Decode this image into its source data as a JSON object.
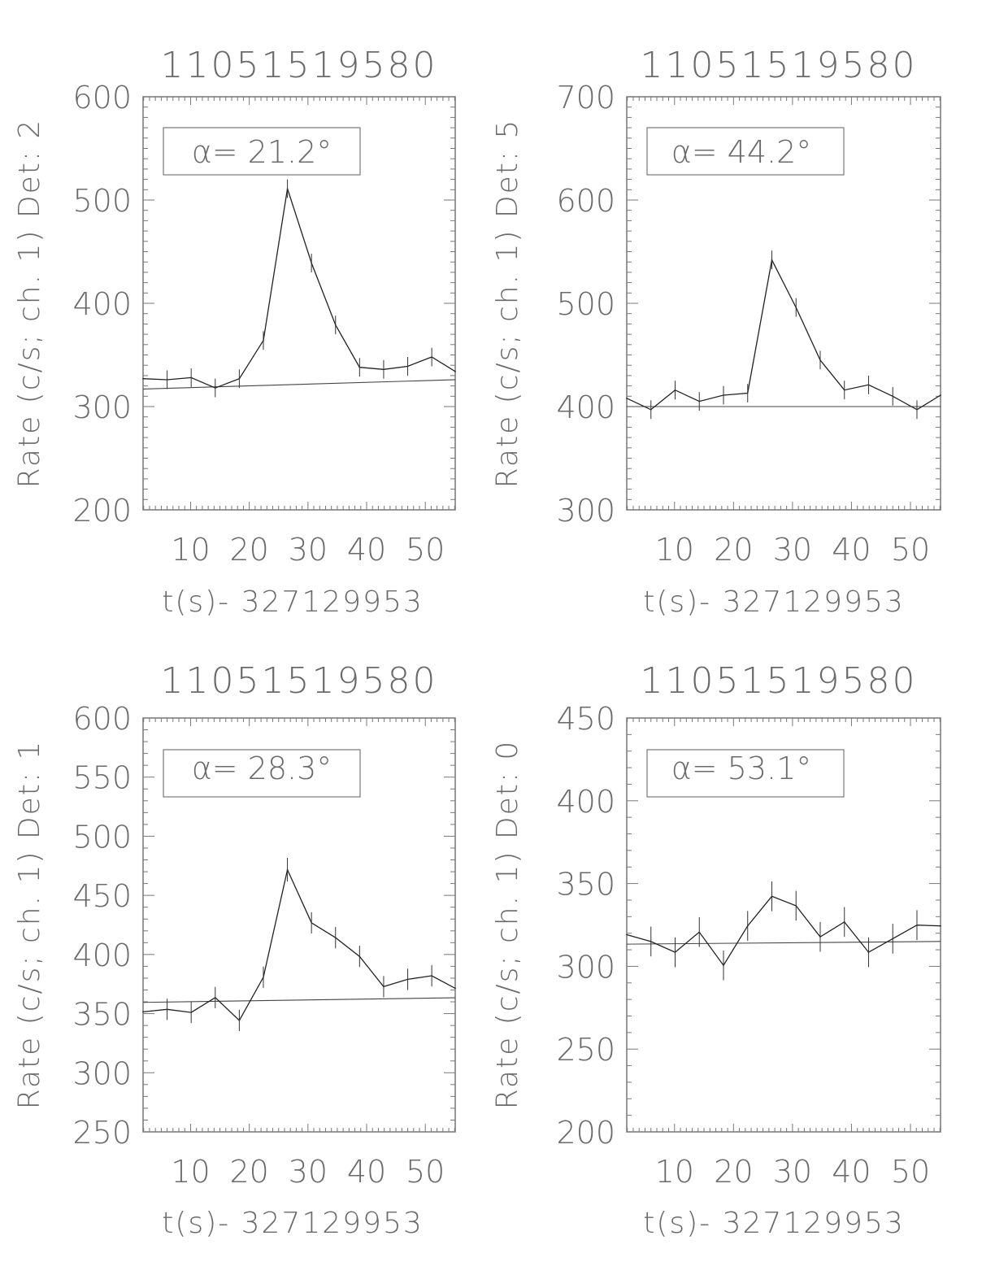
{
  "chart_data": [
    {
      "type": "line",
      "title": "11051519580",
      "ylabel": "Rate (c/s; ch. 1) Det: 2",
      "xlabel": "t(s)- 327129953",
      "annotation": "α= 21.2°",
      "xlim": [
        1.9,
        55.1
      ],
      "ylim": [
        200,
        600
      ],
      "xticks": [
        10,
        20,
        30,
        40,
        50
      ],
      "yticks": [
        200,
        300,
        400,
        500,
        600
      ],
      "ytick_labels": [
        "200",
        "300",
        "400",
        "500",
        "600"
      ],
      "xtick_labels": [
        "10",
        "20",
        "30",
        "40",
        "50"
      ],
      "y_minor_step": 10,
      "x": [
        1.9,
        6.0,
        10.1,
        14.2,
        18.3,
        22.4,
        26.5,
        30.6,
        34.7,
        38.8,
        42.9,
        47.0,
        51.1,
        55.1
      ],
      "y": [
        327,
        326,
        328,
        318,
        327,
        364,
        511,
        439,
        379,
        338,
        336,
        339,
        348,
        334
      ],
      "yerr": [
        0,
        9,
        9,
        9,
        9,
        9,
        9,
        9,
        9,
        9,
        9,
        9,
        9,
        0
      ],
      "background": {
        "x": [
          1.9,
          55.1
        ],
        "y": [
          317,
          326
        ]
      }
    },
    {
      "type": "line",
      "title": "11051519580",
      "ylabel": "Rate (c/s; ch. 1) Det: 5",
      "xlabel": "t(s)- 327129953",
      "annotation": "α= 44.2°",
      "xlim": [
        1.9,
        55.1
      ],
      "ylim": [
        300,
        700
      ],
      "xticks": [
        10,
        20,
        30,
        40,
        50
      ],
      "yticks": [
        300,
        400,
        500,
        600,
        700
      ],
      "ytick_labels": [
        "300",
        "400",
        "500",
        "600",
        "700"
      ],
      "xtick_labels": [
        "10",
        "20",
        "30",
        "40",
        "50"
      ],
      "y_minor_step": 10,
      "x": [
        1.9,
        6.0,
        10.1,
        14.2,
        18.3,
        22.4,
        26.5,
        30.6,
        34.7,
        38.8,
        42.9,
        47.0,
        51.1,
        55.1
      ],
      "y": [
        408,
        397,
        416,
        405,
        411,
        413,
        542,
        496,
        445,
        416,
        421,
        410,
        397,
        411
      ],
      "yerr": [
        0,
        9,
        9,
        9,
        9,
        9,
        9,
        9,
        9,
        9,
        9,
        9,
        9,
        0
      ],
      "background": {
        "x": [
          1.9,
          55.1
        ],
        "y": [
          400,
          400
        ]
      }
    },
    {
      "type": "line",
      "title": "11051519580",
      "ylabel": "Rate (c/s; ch. 1) Det: 1",
      "xlabel": "t(s)- 327129953",
      "annotation": "α= 28.3°",
      "xlim": [
        1.9,
        55.1
      ],
      "ylim": [
        250,
        600
      ],
      "xticks": [
        10,
        20,
        30,
        40,
        50
      ],
      "yticks": [
        250,
        300,
        350,
        400,
        450,
        500,
        550,
        600
      ],
      "ytick_labels": [
        "250",
        "300",
        "350",
        "400",
        "450",
        "500",
        "550",
        "600"
      ],
      "xtick_labels": [
        "10",
        "20",
        "30",
        "40",
        "50"
      ],
      "y_minor_step": 10,
      "x": [
        1.9,
        6.0,
        10.1,
        14.2,
        18.3,
        22.4,
        26.5,
        30.6,
        34.7,
        38.8,
        42.9,
        47.0,
        51.1,
        55.1
      ],
      "y": [
        351.5,
        353.6,
        351,
        363.6,
        344.2,
        380.8,
        471.7,
        426.8,
        414.2,
        398.4,
        372.8,
        379,
        382,
        371.4
      ],
      "yerr": [
        0,
        9,
        9,
        9,
        9,
        9,
        10,
        9,
        9,
        9,
        9,
        9,
        9,
        0
      ],
      "background": {
        "x": [
          1.9,
          55.1
        ],
        "y": [
          359.5,
          363.4
        ]
      }
    },
    {
      "type": "line",
      "title": "11051519580",
      "ylabel": "Rate (c/s; ch. 1) Det: 0",
      "xlabel": "t(s)- 327129953",
      "annotation": "α= 53.1°",
      "xlim": [
        1.9,
        55.1
      ],
      "ylim": [
        200,
        450
      ],
      "xticks": [
        10,
        20,
        30,
        40,
        50
      ],
      "yticks": [
        200,
        250,
        300,
        350,
        400,
        450
      ],
      "ytick_labels": [
        "200",
        "250",
        "300",
        "350",
        "400",
        "450"
      ],
      "xtick_labels": [
        "10",
        "20",
        "30",
        "40",
        "50"
      ],
      "y_minor_step": 10,
      "x": [
        1.9,
        6.0,
        10.1,
        14.2,
        18.3,
        22.4,
        26.5,
        30.6,
        34.7,
        38.8,
        42.9,
        47.0,
        51.1,
        55.1
      ],
      "y": [
        319.1,
        315,
        308.5,
        320.7,
        300.6,
        324.4,
        342.3,
        336.6,
        317.8,
        326.8,
        308.5,
        316.7,
        324.9,
        324.4
      ],
      "yerr": [
        0,
        9,
        9,
        9,
        9,
        9,
        9,
        9,
        9,
        9,
        9,
        9,
        9,
        0
      ],
      "background": {
        "x": [
          1.9,
          55.1
        ],
        "y": [
          313.4,
          315
        ]
      }
    }
  ]
}
